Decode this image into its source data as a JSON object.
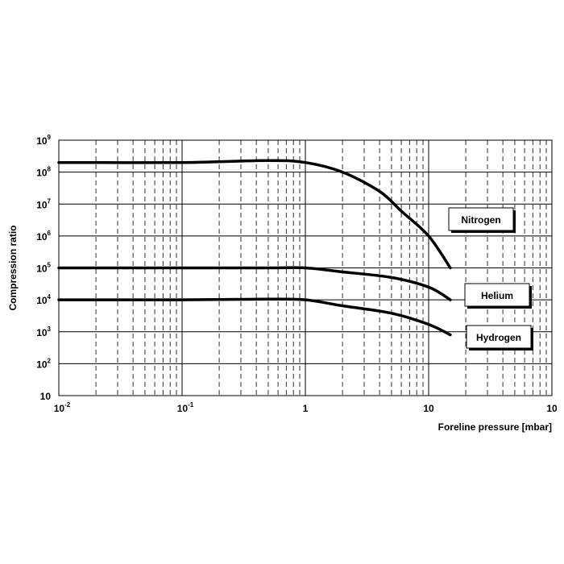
{
  "chart_data": {
    "type": "line",
    "xscale": "log",
    "yscale": "log",
    "xlim": [
      0.01,
      100
    ],
    "ylim": [
      10,
      1000000000
    ],
    "grid": true,
    "title": "",
    "xlabel": "Foreline pressure [mbar]",
    "ylabel": "Compression ratio",
    "x_ticks": [
      {
        "base": "10",
        "exp": "-2"
      },
      {
        "base": "10",
        "exp": "-1"
      },
      {
        "base": "1",
        "exp": ""
      },
      {
        "base": "10",
        "exp": ""
      },
      {
        "base": "10",
        "exp": ""
      }
    ],
    "y_ticks": [
      {
        "base": "10",
        "exp": ""
      },
      {
        "base": "10",
        "exp": "2"
      },
      {
        "base": "10",
        "exp": "3"
      },
      {
        "base": "10",
        "exp": "4"
      },
      {
        "base": "10",
        "exp": "5"
      },
      {
        "base": "10",
        "exp": "6"
      },
      {
        "base": "10",
        "exp": "7"
      },
      {
        "base": "10",
        "exp": "8"
      },
      {
        "base": "10",
        "exp": "9"
      }
    ],
    "series": [
      {
        "name": "Nitrogen",
        "points": [
          [
            0.01,
            200000000
          ],
          [
            0.1,
            200000000
          ],
          [
            0.5,
            230000000
          ],
          [
            1,
            200000000
          ],
          [
            2,
            100000000
          ],
          [
            4,
            25000000
          ],
          [
            6,
            6000000
          ],
          [
            10,
            1000000
          ],
          [
            15,
            100000
          ]
        ]
      },
      {
        "name": "Helium",
        "points": [
          [
            0.01,
            100000
          ],
          [
            0.1,
            100000
          ],
          [
            0.5,
            100000
          ],
          [
            1,
            100000
          ],
          [
            2,
            75000
          ],
          [
            5,
            50000
          ],
          [
            10,
            25000
          ],
          [
            15,
            10000
          ]
        ]
      },
      {
        "name": "Hydrogen",
        "points": [
          [
            0.01,
            10000
          ],
          [
            0.1,
            10000
          ],
          [
            0.5,
            10500
          ],
          [
            1,
            10000
          ],
          [
            2,
            6500
          ],
          [
            5,
            3800
          ],
          [
            10,
            1700
          ],
          [
            15,
            800
          ]
        ]
      }
    ],
    "legend_placement": "labels beside curve ends on the right"
  }
}
